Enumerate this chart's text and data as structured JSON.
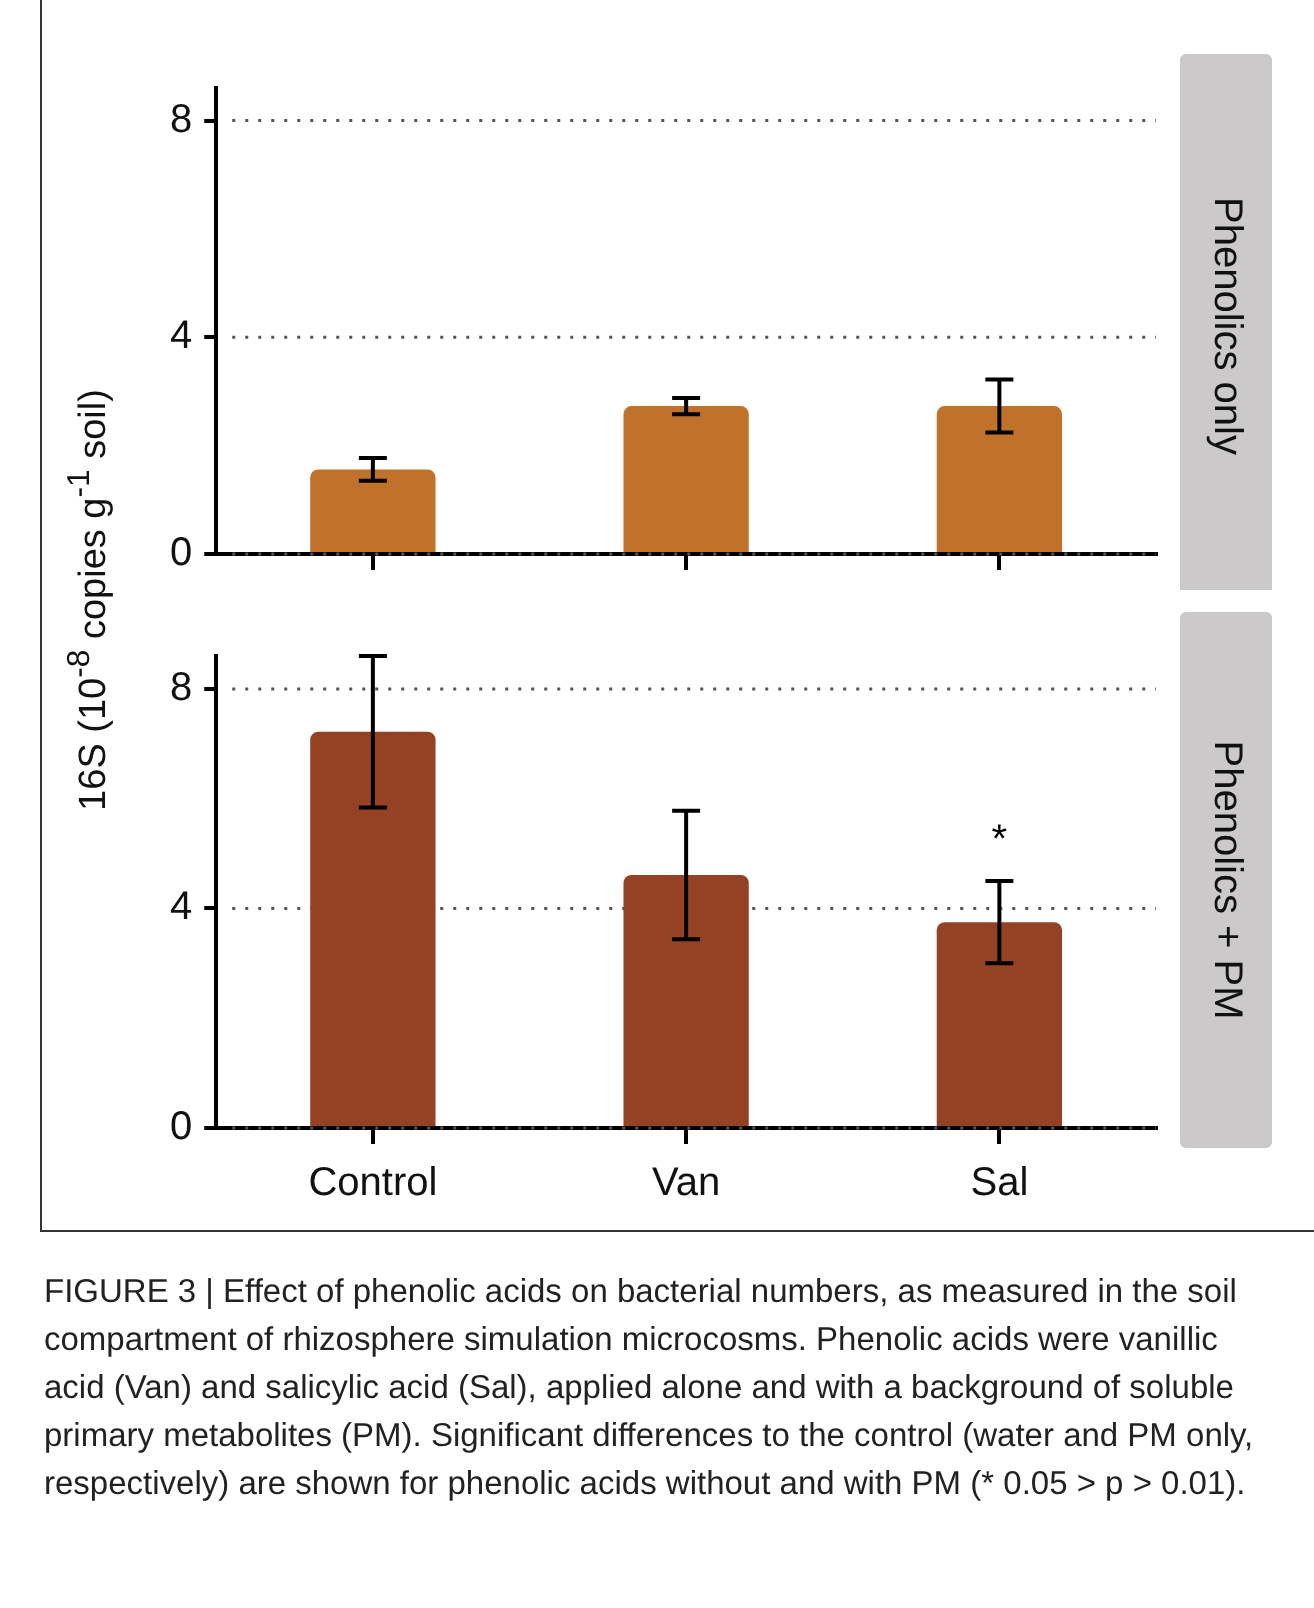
{
  "chart_data": [
    {
      "type": "bar",
      "ylabel": "16S (10$^{-8}$ copies g$^{-1}$ soil)",
      "categories": [
        null,
        null,
        null
      ],
      "values": [
        1.56,
        2.73,
        2.73
      ],
      "errors": [
        0.21,
        0.15,
        0.49
      ],
      "color": "#c0722b",
      "ylim": [
        0,
        8.6
      ],
      "yticks": [
        0,
        4,
        8
      ],
      "grid": "y",
      "tick_labels": "y",
      "annotations": [
        "Phenolics only"
      ]
    },
    {
      "type": "bar",
      "categories": [
        "Control",
        "Van",
        "Sal"
      ],
      "values": [
        7.22,
        4.61,
        3.75
      ],
      "errors": [
        1.38,
        1.17,
        0.75
      ],
      "color": "#954224",
      "ylim": [
        0,
        8.6
      ],
      "yticks": [
        0,
        4,
        8
      ],
      "grid": "y",
      "annotations": [
        {
          "text": "*",
          "x": "Sal",
          "y": 4.5
        },
        "Phenolics + PM",
        "FIGURE 3 | Effect of phenolic acids on bacterial numbers, as measured in the soil compartment of rhizosphere simulation microcosms. Phenolic acids were vanillic acid (Van) and salicylic acid (Sal), applied alone and with a background of soluble primary metabolites (PM). Significant differences to the control (water and PM only, respectively) are shown for phenolic acids without and with PM (* 0.05 > p > 0.01)."
      ]
    }
  ]
}
